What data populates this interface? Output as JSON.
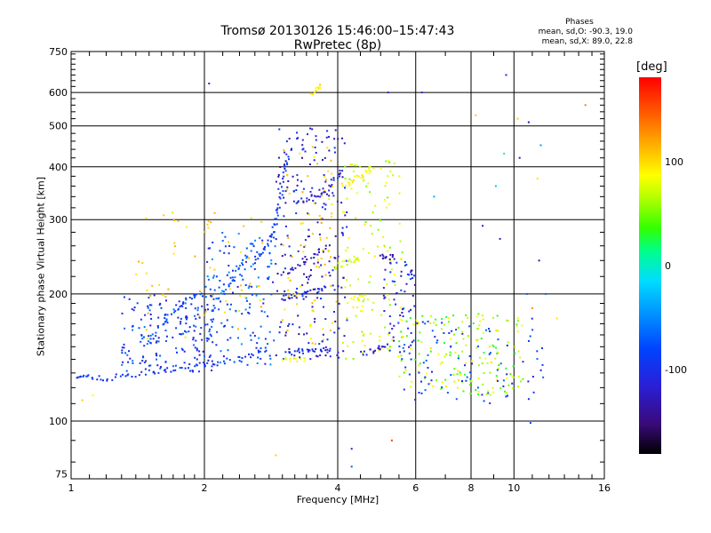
{
  "title_line1": "Tromsø 20130126 15:46:00–15:47:43",
  "title_line2": "RwPretec (8p)",
  "phases": {
    "header": "Phases",
    "line1": "mean, sd,O: -90.3, 19.0",
    "line2": "mean, sd,X:  89.0, 22.8"
  },
  "colorbar": {
    "unit": "[deg]",
    "ticks": [
      "100",
      "0",
      "-100"
    ],
    "colors": [
      "#000000",
      "#3a0a7a",
      "#2a1fd6",
      "#0044ff",
      "#0099ff",
      "#00ddff",
      "#00ff88",
      "#33ff00",
      "#b4ff00",
      "#ffff00",
      "#ffb000",
      "#ff6000",
      "#ff0000"
    ]
  },
  "chart_data": {
    "type": "scatter",
    "title": "Tromsø 20130126 15:46:00–15:47:43",
    "subtitle": "RwPretec (8p)",
    "xlabel": "Frequency [MHz]",
    "ylabel": "Stationary phase Virtual Height [km]",
    "xscale": "log",
    "yscale": "log",
    "xlim": [
      1,
      16
    ],
    "ylim": [
      73,
      750
    ],
    "x_ticks": [
      "1",
      "2",
      "4",
      "6",
      "8",
      "10",
      "16"
    ],
    "y_ticks": [
      "75",
      "100",
      "200",
      "300",
      "400",
      "500",
      "600",
      "750"
    ],
    "grid": true,
    "color_scale": "phase [deg], approx -180 to 180",
    "traces": [
      {
        "phase": -100,
        "points": [
          [
            1.03,
            128
          ],
          [
            1.08,
            127
          ],
          [
            1.15,
            126
          ],
          [
            1.25,
            127
          ],
          [
            1.35,
            128
          ],
          [
            1.5,
            130
          ],
          [
            1.65,
            132
          ],
          [
            1.8,
            134
          ],
          [
            2.0,
            136
          ],
          [
            2.2,
            138
          ],
          [
            2.4,
            141
          ],
          [
            2.6,
            144
          ],
          [
            2.8,
            148
          ]
        ]
      },
      {
        "phase": -100,
        "points": [
          [
            2.6,
            240
          ],
          [
            2.7,
            250
          ],
          [
            2.8,
            265
          ],
          [
            2.85,
            280
          ],
          [
            2.9,
            300
          ],
          [
            2.95,
            330
          ],
          [
            3.0,
            360
          ],
          [
            3.05,
            400
          ],
          [
            3.1,
            440
          ]
        ]
      },
      {
        "phase": -90,
        "points": [
          [
            1.5,
            155
          ],
          [
            1.6,
            170
          ],
          [
            1.7,
            180
          ],
          [
            1.8,
            190
          ],
          [
            1.9,
            200
          ],
          [
            2.0,
            200
          ]
        ]
      },
      {
        "phase": -80,
        "points": [
          [
            2.1,
            190
          ],
          [
            2.2,
            200
          ],
          [
            2.3,
            215
          ],
          [
            2.4,
            230
          ],
          [
            2.5,
            250
          ],
          [
            2.6,
            270
          ]
        ]
      },
      {
        "phase": -120,
        "points": [
          [
            3.2,
            330
          ],
          [
            3.4,
            335
          ],
          [
            3.6,
            340
          ],
          [
            3.8,
            350
          ],
          [
            4.0,
            380
          ],
          [
            4.1,
            400
          ]
        ]
      },
      {
        "phase": -120,
        "points": [
          [
            3.0,
            195
          ],
          [
            3.2,
            198
          ],
          [
            3.4,
            200
          ],
          [
            3.6,
            205
          ],
          [
            3.8,
            210
          ]
        ]
      },
      {
        "phase": -130,
        "points": [
          [
            3.0,
            225
          ],
          [
            3.2,
            230
          ],
          [
            3.4,
            240
          ],
          [
            3.6,
            250
          ],
          [
            3.8,
            260
          ]
        ]
      },
      {
        "phase": -110,
        "points": [
          [
            3.1,
            145
          ],
          [
            3.3,
            146
          ],
          [
            3.5,
            146
          ],
          [
            3.7,
            147
          ],
          [
            3.9,
            148
          ]
        ]
      },
      {
        "phase": -120,
        "points": [
          [
            4.5,
            145
          ],
          [
            4.8,
            146
          ],
          [
            5.0,
            150
          ],
          [
            5.2,
            150
          ]
        ]
      },
      {
        "phase": -130,
        "points": [
          [
            5.0,
            245
          ],
          [
            5.2,
            245
          ],
          [
            5.4,
            245
          ]
        ]
      },
      {
        "phase": 90,
        "points": [
          [
            4.1,
            360
          ],
          [
            4.3,
            370
          ],
          [
            4.5,
            380
          ],
          [
            4.7,
            390
          ],
          [
            4.8,
            400
          ]
        ]
      },
      {
        "phase": 100,
        "points": [
          [
            3.5,
            600
          ],
          [
            3.6,
            610
          ],
          [
            3.7,
            620
          ]
        ]
      },
      {
        "phase": 70,
        "points": [
          [
            3.9,
            230
          ],
          [
            4.1,
            235
          ],
          [
            4.3,
            240
          ],
          [
            4.5,
            245
          ]
        ]
      },
      {
        "phase": 80,
        "points": [
          [
            4.3,
            195
          ],
          [
            4.5,
            196
          ],
          [
            4.7,
            197
          ]
        ]
      },
      {
        "phase": 80,
        "points": [
          [
            3.0,
            140
          ],
          [
            3.2,
            140
          ],
          [
            3.4,
            141
          ]
        ]
      }
    ],
    "scatter_points": [
      {
        "x": 2.05,
        "y": 630,
        "phase": -110
      },
      {
        "x": 9.6,
        "y": 660,
        "phase": -120
      },
      {
        "x": 6.2,
        "y": 600,
        "phase": -110
      },
      {
        "x": 5.2,
        "y": 600,
        "phase": -120
      },
      {
        "x": 14.5,
        "y": 560,
        "phase": 140
      },
      {
        "x": 10.2,
        "y": 520,
        "phase": 110
      },
      {
        "x": 8.2,
        "y": 530,
        "phase": 110
      },
      {
        "x": 10.8,
        "y": 510,
        "phase": -140
      },
      {
        "x": 11.5,
        "y": 450,
        "phase": -60
      },
      {
        "x": 10.3,
        "y": 420,
        "phase": -130
      },
      {
        "x": 9.5,
        "y": 430,
        "phase": -20
      },
      {
        "x": 11.3,
        "y": 375,
        "phase": 100
      },
      {
        "x": 9.1,
        "y": 360,
        "phase": -40
      },
      {
        "x": 6.6,
        "y": 340,
        "phase": -50
      },
      {
        "x": 5.3,
        "y": 90,
        "phase": 160
      },
      {
        "x": 4.3,
        "y": 86,
        "phase": -110
      },
      {
        "x": 4.3,
        "y": 78,
        "phase": -80
      },
      {
        "x": 2.9,
        "y": 83,
        "phase": 110
      },
      {
        "x": 1.06,
        "y": 112,
        "phase": 110
      },
      {
        "x": 1.12,
        "y": 115,
        "phase": 90
      },
      {
        "x": 10.9,
        "y": 99,
        "phase": -90
      },
      {
        "x": 8.5,
        "y": 290,
        "phase": -120
      },
      {
        "x": 9.3,
        "y": 270,
        "phase": -120
      },
      {
        "x": 11.4,
        "y": 240,
        "phase": -140
      },
      {
        "x": 10.7,
        "y": 200,
        "phase": -80
      },
      {
        "x": 11.8,
        "y": 200,
        "phase": -80
      },
      {
        "x": 12.5,
        "y": 175,
        "phase": 100
      },
      {
        "x": 11.0,
        "y": 185,
        "phase": 130
      }
    ],
    "clouds": [
      {
        "xr": [
          1.3,
          2.1
        ],
        "yr": [
          130,
          200
        ],
        "n": 180,
        "phase": -100,
        "spread": 60
      },
      {
        "xr": [
          2.0,
          2.9
        ],
        "yr": [
          135,
          280
        ],
        "n": 150,
        "phase": -90,
        "spread": 60
      },
      {
        "xr": [
          1.4,
          2.8
        ],
        "yr": [
          150,
          320
        ],
        "n": 60,
        "phase": 110,
        "spread": 30
      },
      {
        "xr": [
          2.9,
          4.2
        ],
        "yr": [
          140,
          500
        ],
        "n": 220,
        "phase": -120,
        "spread": 50
      },
      {
        "xr": [
          3.0,
          4.0
        ],
        "yr": [
          150,
          450
        ],
        "n": 80,
        "phase": 110,
        "spread": 30
      },
      {
        "xr": [
          4.1,
          5.6
        ],
        "yr": [
          140,
          420
        ],
        "n": 120,
        "phase": 70,
        "spread": 60
      },
      {
        "xr": [
          5.0,
          6.0
        ],
        "yr": [
          140,
          240
        ],
        "n": 60,
        "phase": -110,
        "spread": 50
      },
      {
        "xr": [
          5.5,
          10.5
        ],
        "yr": [
          115,
          180
        ],
        "n": 170,
        "phase": 60,
        "spread": 90
      },
      {
        "xr": [
          5.5,
          12.0
        ],
        "yr": [
          110,
          175
        ],
        "n": 90,
        "phase": -100,
        "spread": 50
      }
    ]
  },
  "xaxis_label": "Frequency [MHz]",
  "yaxis_label": "Stationary phase Virtual Height [km]"
}
